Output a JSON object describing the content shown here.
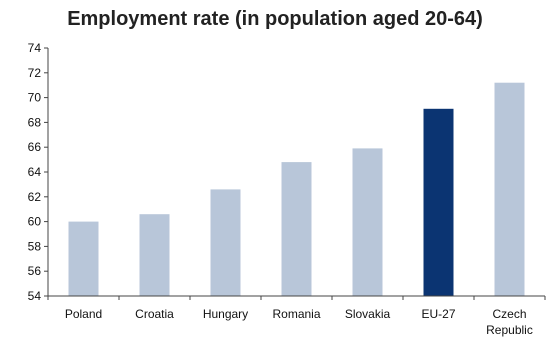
{
  "chart_data": {
    "type": "bar",
    "title": "Employment rate (in population aged 20-64)",
    "xlabel": "",
    "ylabel": "",
    "categories": [
      [
        "Poland"
      ],
      [
        "Croatia"
      ],
      [
        "Hungary"
      ],
      [
        "Romania"
      ],
      [
        "Slovakia"
      ],
      [
        "EU-27"
      ],
      [
        "Czech",
        "Republic"
      ]
    ],
    "values": [
      60.0,
      60.6,
      62.6,
      64.8,
      65.9,
      69.1,
      71.2
    ],
    "highlight_index": 5,
    "ylim": [
      54,
      74
    ],
    "yticks": [
      54,
      56,
      58,
      60,
      62,
      64,
      66,
      68,
      70,
      72,
      74
    ],
    "grid": false,
    "legend": "none",
    "colors": {
      "bar": "#b8c6d9",
      "highlight": "#0b3472",
      "axis": "#444444"
    }
  }
}
